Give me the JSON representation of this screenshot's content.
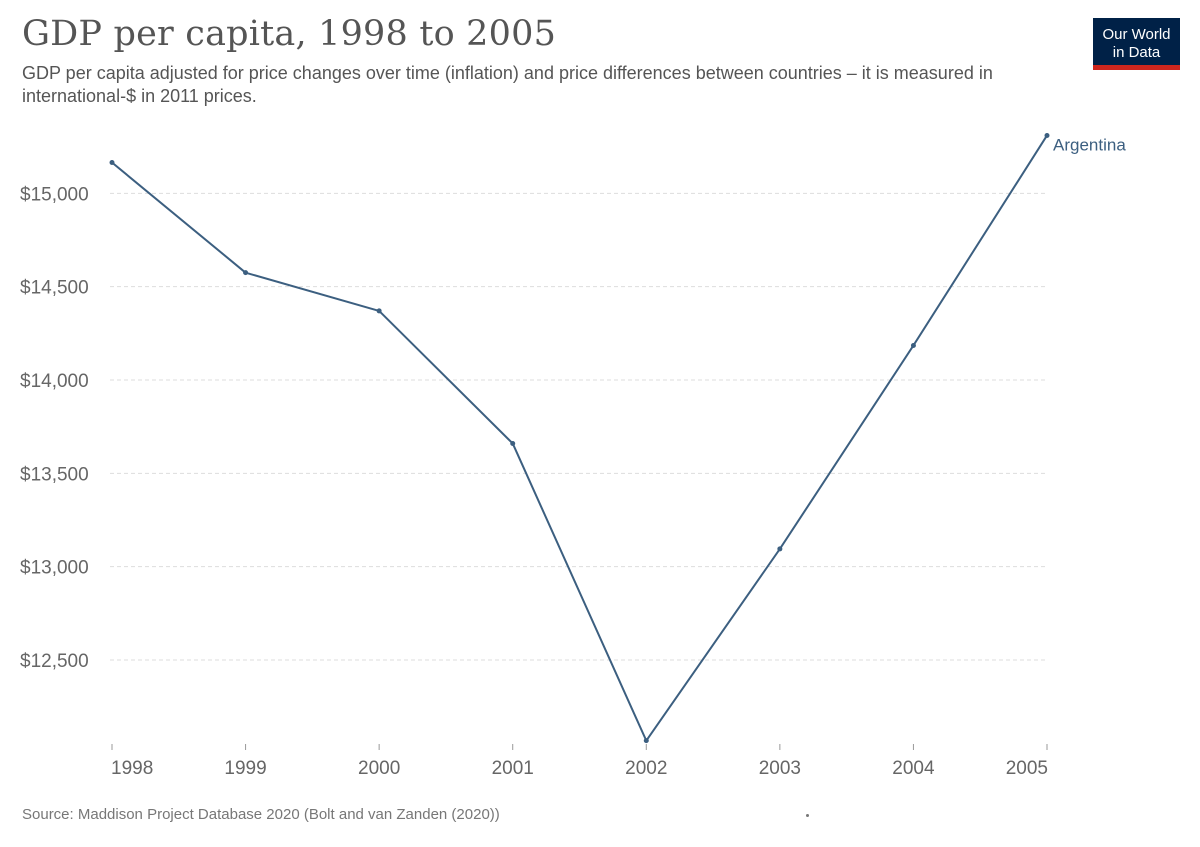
{
  "header": {
    "title": "GDP per capita, 1998 to 2005",
    "subtitle": "GDP per capita adjusted for price changes over time (inflation) and price differences between countries – it is measured in international-$ in 2011 prices."
  },
  "logo": {
    "line1": "Our World",
    "line2": "in Data",
    "bg_color": "#002147",
    "accent_color": "#ce261e"
  },
  "footer": {
    "source": "Source: Maddison Project Database 2020 (Bolt and van Zanden (2020))"
  },
  "chart_data": {
    "type": "line",
    "title": "GDP per capita, 1998 to 2005",
    "xlabel": "",
    "ylabel": "",
    "x": [
      1998,
      1999,
      2000,
      2001,
      2002,
      2003,
      2004,
      2005
    ],
    "x_tick_labels": [
      "1998",
      "1999",
      "2000",
      "2001",
      "2002",
      "2003",
      "2004",
      "2005"
    ],
    "y_ticks": [
      12500,
      13000,
      13500,
      14000,
      14500,
      15000
    ],
    "y_tick_labels": [
      "$12,500",
      "$13,000",
      "$13,500",
      "$14,000",
      "$14,500",
      "$15,000"
    ],
    "ylim": [
      12050,
      15350
    ],
    "grid": "horizontal dashed",
    "legend": "end-of-line label",
    "series": [
      {
        "name": "Argentina",
        "color": "#3c5f80",
        "values": [
          15165,
          14575,
          14370,
          13660,
          12068,
          13095,
          14185,
          15310
        ]
      }
    ]
  }
}
